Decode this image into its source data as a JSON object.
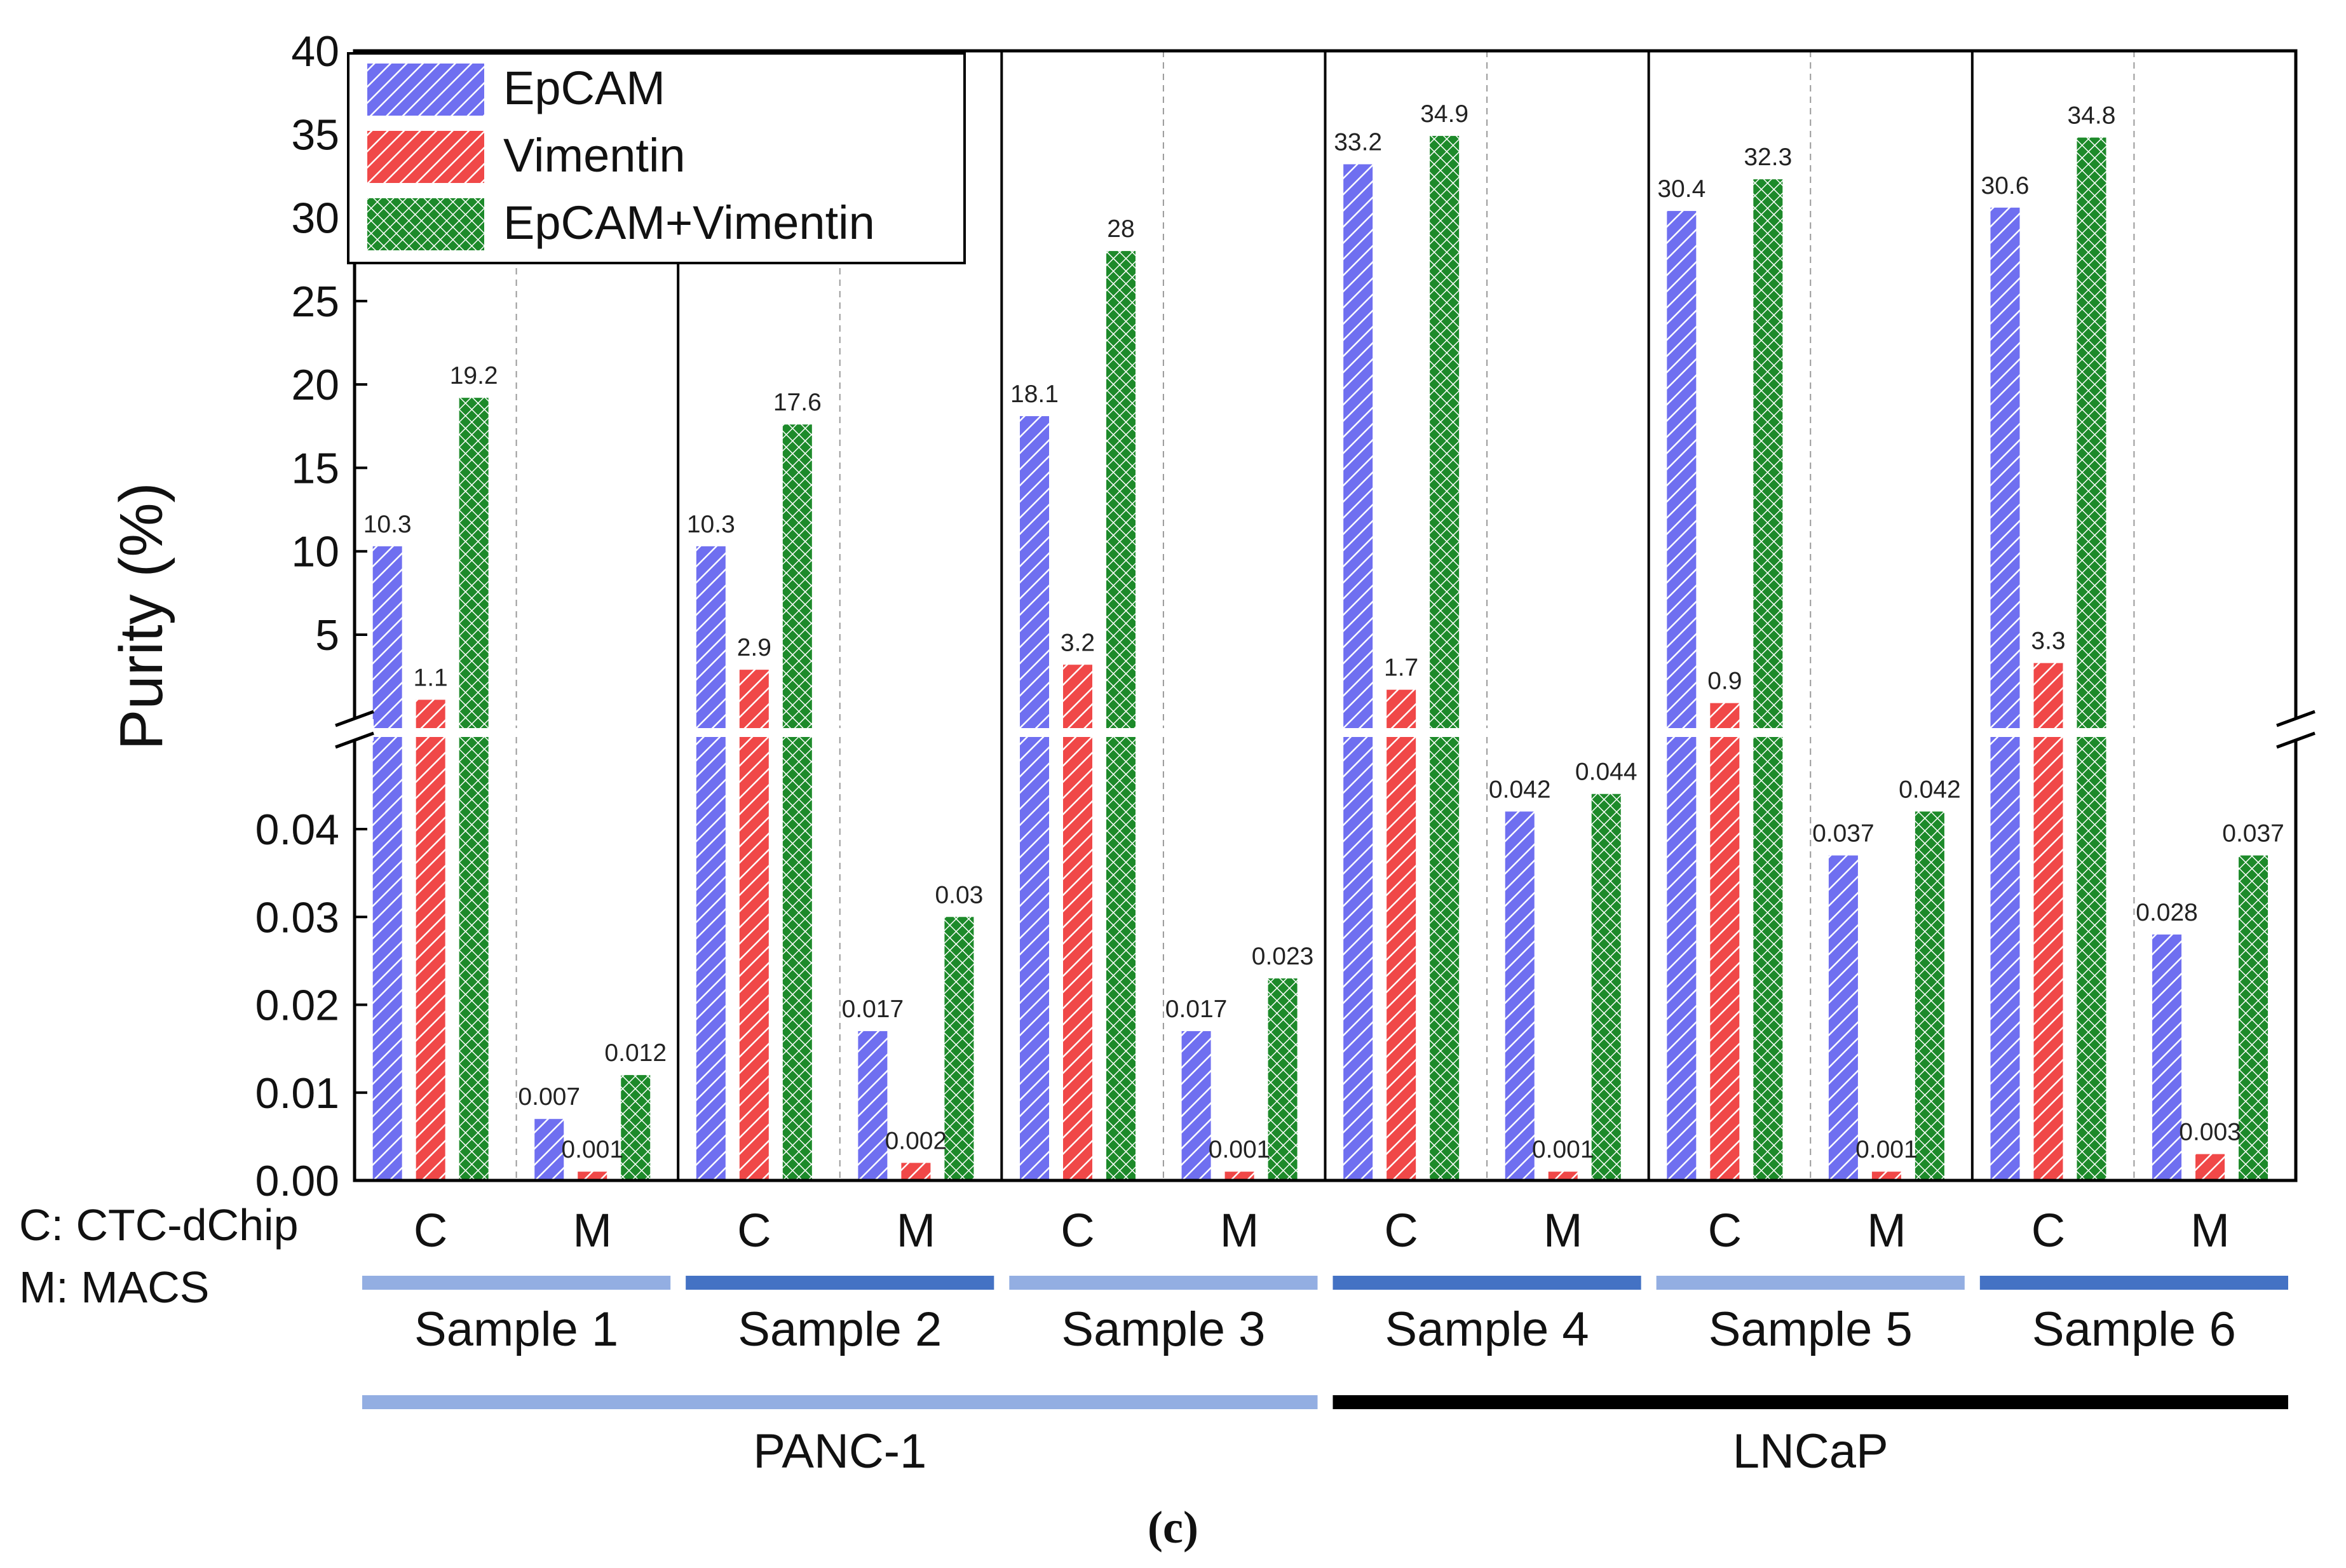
{
  "chart_data": {
    "type": "bar",
    "ylabel": "Purity (%)",
    "caption": "(c)",
    "y_axis": {
      "break": true,
      "upper_segment": {
        "ylim": [
          0.2,
          40
        ],
        "ticks": [
          "5",
          "10",
          "15",
          "20",
          "25",
          "30",
          "35",
          "40"
        ],
        "tick_values": [
          5,
          10,
          15,
          20,
          25,
          30,
          35,
          40
        ]
      },
      "lower_segment": {
        "ylim": [
          0,
          0.05
        ],
        "ticks": [
          "0.00",
          "0.01",
          "0.02",
          "0.03",
          "0.04"
        ],
        "tick_values": [
          0,
          0.01,
          0.02,
          0.03,
          0.04
        ]
      }
    },
    "legend": {
      "position": "top-left",
      "entries": [
        "EpCAM",
        "Vimentin",
        "EpCAM+Vimentin"
      ]
    },
    "method_legend": [
      "C: CTC-dChip",
      "M: MACS"
    ],
    "groups": [
      {
        "sample": "Sample 1",
        "cell_line": "PANC-1",
        "methods": [
          {
            "label": "C",
            "values": [
              10.3,
              1.1,
              19.2
            ],
            "value_labels": [
              "10.3",
              "1.1",
              "19.2"
            ]
          },
          {
            "label": "M",
            "values": [
              0.007,
              0.001,
              0.012
            ],
            "value_labels": [
              "0.007",
              "0.001",
              "0.012"
            ]
          }
        ]
      },
      {
        "sample": "Sample 2",
        "cell_line": "PANC-1",
        "methods": [
          {
            "label": "C",
            "values": [
              10.3,
              2.9,
              17.6
            ],
            "value_labels": [
              "10.3",
              "2.9",
              "17.6"
            ]
          },
          {
            "label": "M",
            "values": [
              0.017,
              0.002,
              0.03
            ],
            "value_labels": [
              "0.017",
              "0.002",
              "0.03"
            ]
          }
        ]
      },
      {
        "sample": "Sample 3",
        "cell_line": "PANC-1",
        "methods": [
          {
            "label": "C",
            "values": [
              18.1,
              3.2,
              28
            ],
            "value_labels": [
              "18.1",
              "3.2",
              "28"
            ]
          },
          {
            "label": "M",
            "values": [
              0.017,
              0.001,
              0.023
            ],
            "value_labels": [
              "0.017",
              "0.001",
              "0.023"
            ]
          }
        ]
      },
      {
        "sample": "Sample 4",
        "cell_line": "LNCaP",
        "methods": [
          {
            "label": "C",
            "values": [
              33.2,
              1.7,
              34.9
            ],
            "value_labels": [
              "33.2",
              "1.7",
              "34.9"
            ]
          },
          {
            "label": "M",
            "values": [
              0.042,
              0.001,
              0.044
            ],
            "value_labels": [
              "0.042",
              "0.001",
              "0.044"
            ]
          }
        ]
      },
      {
        "sample": "Sample 5",
        "cell_line": "LNCaP",
        "methods": [
          {
            "label": "C",
            "values": [
              30.4,
              0.9,
              32.3
            ],
            "value_labels": [
              "30.4",
              "0.9",
              "32.3"
            ]
          },
          {
            "label": "M",
            "values": [
              0.037,
              0.001,
              0.042
            ],
            "value_labels": [
              "0.037",
              "0.001",
              "0.042"
            ]
          }
        ]
      },
      {
        "sample": "Sample 6",
        "cell_line": "LNCaP",
        "methods": [
          {
            "label": "C",
            "values": [
              30.6,
              3.3,
              34.8
            ],
            "value_labels": [
              "30.6",
              "3.3",
              "34.8"
            ]
          },
          {
            "label": "M",
            "values": [
              0.028,
              0.003,
              0.037
            ],
            "value_labels": [
              "0.028",
              "0.003",
              "0.037"
            ]
          }
        ]
      }
    ],
    "cell_lines": [
      "PANC-1",
      "LNCaP"
    ],
    "colors": {
      "epcam": "#6f6ff0",
      "vimentin": "#f04848",
      "combined": "#1d8a2a",
      "sample_bar_light": "#93aee2",
      "sample_bar_dark": "#4472c4",
      "panc_bar": "#93aee2",
      "lncap_bar": "#000000"
    }
  }
}
